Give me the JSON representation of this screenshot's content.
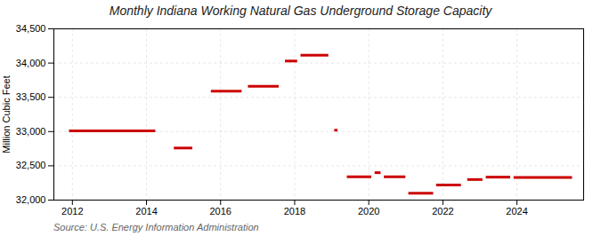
{
  "chart_data": {
    "type": "segment",
    "title": "Monthly Indiana Working Natural Gas Underground Storage Capacity",
    "ylabel": "Million Cubic Feet",
    "source": "Source: U.S. Energy Information Administration",
    "color": "#cc0000",
    "grid": true,
    "xlim": [
      2011.5,
      2025.8
    ],
    "xticks": [
      2012,
      2014,
      2016,
      2018,
      2020,
      2022,
      2024
    ],
    "ylim": [
      32000,
      34500
    ],
    "yticks": [
      {
        "value": 32000,
        "label": "32,000"
      },
      {
        "value": 32500,
        "label": "32,500"
      },
      {
        "value": 33000,
        "label": "33,000"
      },
      {
        "value": 33500,
        "label": "33,500"
      },
      {
        "value": 34000,
        "label": "34,000"
      },
      {
        "value": 34500,
        "label": "34,500"
      }
    ],
    "x_start": [
      2011.92,
      2014.75,
      2015.75,
      2016.75,
      2017.75,
      2018.17,
      2019.08,
      2019.42,
      2020.17,
      2020.42,
      2021.08,
      2021.83,
      2022.67,
      2023.17,
      2023.92
    ],
    "x_end": [
      2014.25,
      2015.25,
      2016.58,
      2017.58,
      2018.08,
      2018.92,
      2019.17,
      2020.08,
      2020.33,
      2021.0,
      2021.75,
      2022.5,
      2023.08,
      2023.83,
      2025.5
    ],
    "values": [
      33010,
      32760,
      33590,
      33660,
      34030,
      34115,
      33020,
      32340,
      32400,
      32340,
      32100,
      32220,
      32300,
      32335,
      32330
    ]
  }
}
